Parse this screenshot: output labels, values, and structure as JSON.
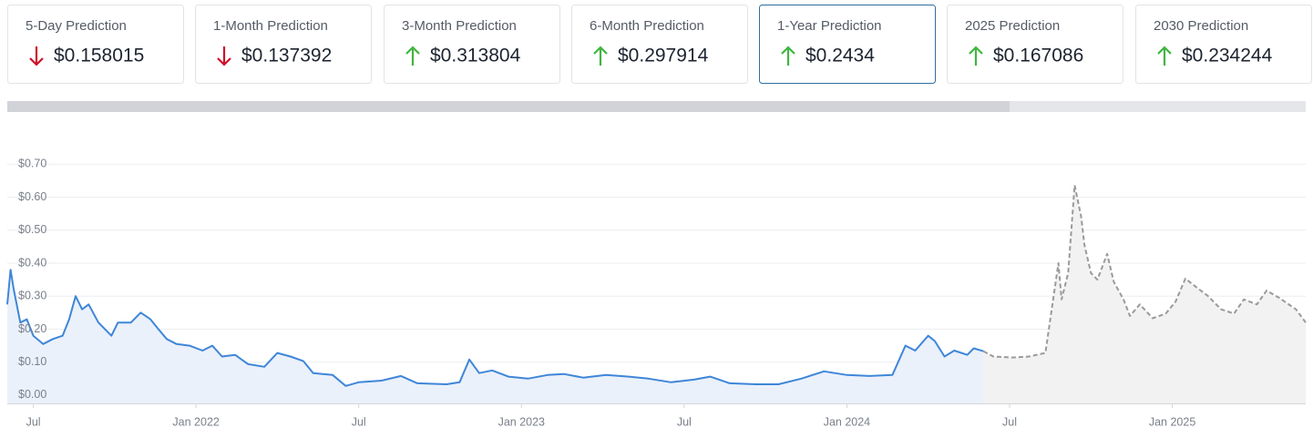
{
  "cards": [
    {
      "label": "5-Day Prediction",
      "value": "$0.158015",
      "direction": "down"
    },
    {
      "label": "1-Month Prediction",
      "value": "$0.137392",
      "direction": "down"
    },
    {
      "label": "3-Month Prediction",
      "value": "$0.313804",
      "direction": "up"
    },
    {
      "label": "6-Month Prediction",
      "value": "$0.297914",
      "direction": "up"
    },
    {
      "label": "1-Year Prediction",
      "value": "$0.2434",
      "direction": "up",
      "selected": true
    },
    {
      "label": "2025 Prediction",
      "value": "$0.167086",
      "direction": "up"
    },
    {
      "label": "2030 Prediction",
      "value": "$0.234244",
      "direction": "up"
    }
  ],
  "chart_data": {
    "type": "area",
    "xlim": [
      2021.42,
      2025.41
    ],
    "xticks": [
      {
        "value": 2021.5,
        "label": "Jul"
      },
      {
        "value": 2022,
        "label": "Jan 2022"
      },
      {
        "value": 2022.5,
        "label": "Jul"
      },
      {
        "value": 2023,
        "label": "Jan 2023"
      },
      {
        "value": 2023.5,
        "label": "Jul"
      },
      {
        "value": 2024,
        "label": "Jan 2024"
      },
      {
        "value": 2024.5,
        "label": "Jul"
      },
      {
        "value": 2025,
        "label": "Jan 2025"
      }
    ],
    "ylim": [
      -0.025,
      0.72
    ],
    "yticks": [
      {
        "value": 0,
        "label": "$0.00"
      },
      {
        "value": 0.1,
        "label": "$0.10"
      },
      {
        "value": 0.2,
        "label": "$0.20"
      },
      {
        "value": 0.3,
        "label": "$0.30"
      },
      {
        "value": 0.4,
        "label": "$0.40"
      },
      {
        "value": 0.5,
        "label": "$0.50"
      },
      {
        "value": 0.6,
        "label": "$0.60"
      },
      {
        "value": 0.7,
        "label": "$0.70"
      }
    ],
    "grid": true,
    "series": [
      {
        "color": "#3f86d8",
        "fill": "#eaf1fb",
        "dashed": false,
        "x": [
          2021.42,
          2021.43,
          2021.44,
          2021.46,
          2021.48,
          2021.5,
          2021.53,
          2021.56,
          2021.59,
          2021.61,
          2021.63,
          2021.65,
          2021.67,
          2021.7,
          2021.74,
          2021.76,
          2021.8,
          2021.83,
          2021.86,
          2021.88,
          2021.91,
          2021.94,
          2021.98,
          2022.02,
          2022.05,
          2022.08,
          2022.12,
          2022.16,
          2022.21,
          2022.25,
          2022.29,
          2022.33,
          2022.36,
          2022.42,
          2022.46,
          2022.5,
          2022.57,
          2022.63,
          2022.68,
          2022.77,
          2022.81,
          2022.84,
          2022.87,
          2022.91,
          2022.96,
          2023.02,
          2023.08,
          2023.13,
          2023.19,
          2023.26,
          2023.33,
          2023.39,
          2023.46,
          2023.53,
          2023.58,
          2023.64,
          2023.72,
          2023.79,
          2023.86,
          2023.93,
          2024.0,
          2024.07,
          2024.14,
          2024.18,
          2024.21,
          2024.25,
          2024.27,
          2024.3,
          2024.33,
          2024.37,
          2024.39,
          2024.42
        ],
        "values": [
          0.275,
          0.38,
          0.32,
          0.22,
          0.23,
          0.18,
          0.155,
          0.17,
          0.18,
          0.23,
          0.3,
          0.26,
          0.275,
          0.22,
          0.18,
          0.22,
          0.22,
          0.25,
          0.23,
          0.205,
          0.17,
          0.155,
          0.15,
          0.135,
          0.15,
          0.117,
          0.122,
          0.094,
          0.086,
          0.128,
          0.117,
          0.103,
          0.067,
          0.061,
          0.028,
          0.039,
          0.044,
          0.058,
          0.036,
          0.033,
          0.039,
          0.108,
          0.067,
          0.075,
          0.056,
          0.05,
          0.061,
          0.064,
          0.053,
          0.061,
          0.056,
          0.05,
          0.039,
          0.047,
          0.056,
          0.036,
          0.033,
          0.033,
          0.05,
          0.072,
          0.061,
          0.058,
          0.061,
          0.15,
          0.135,
          0.18,
          0.164,
          0.117,
          0.135,
          0.122,
          0.142,
          0.133
        ]
      },
      {
        "color": "#9a9a9a",
        "fill": "#f2f2f2",
        "dashed": true,
        "x": [
          2024.42,
          2024.45,
          2024.51,
          2024.56,
          2024.61,
          2024.65,
          2024.66,
          2024.68,
          2024.7,
          2024.72,
          2024.73,
          2024.75,
          2024.77,
          2024.8,
          2024.82,
          2024.85,
          2024.87,
          2024.9,
          2024.94,
          2024.98,
          2025.01,
          2025.04,
          2025.07,
          2025.11,
          2025.15,
          2025.19,
          2025.22,
          2025.26,
          2025.29,
          2025.33,
          2025.38,
          2025.41
        ],
        "values": [
          0.133,
          0.117,
          0.114,
          0.117,
          0.128,
          0.4,
          0.29,
          0.37,
          0.636,
          0.54,
          0.456,
          0.37,
          0.35,
          0.428,
          0.344,
          0.29,
          0.24,
          0.275,
          0.233,
          0.247,
          0.283,
          0.353,
          0.33,
          0.3,
          0.26,
          0.247,
          0.29,
          0.275,
          0.317,
          0.294,
          0.26,
          0.22
        ]
      }
    ]
  }
}
